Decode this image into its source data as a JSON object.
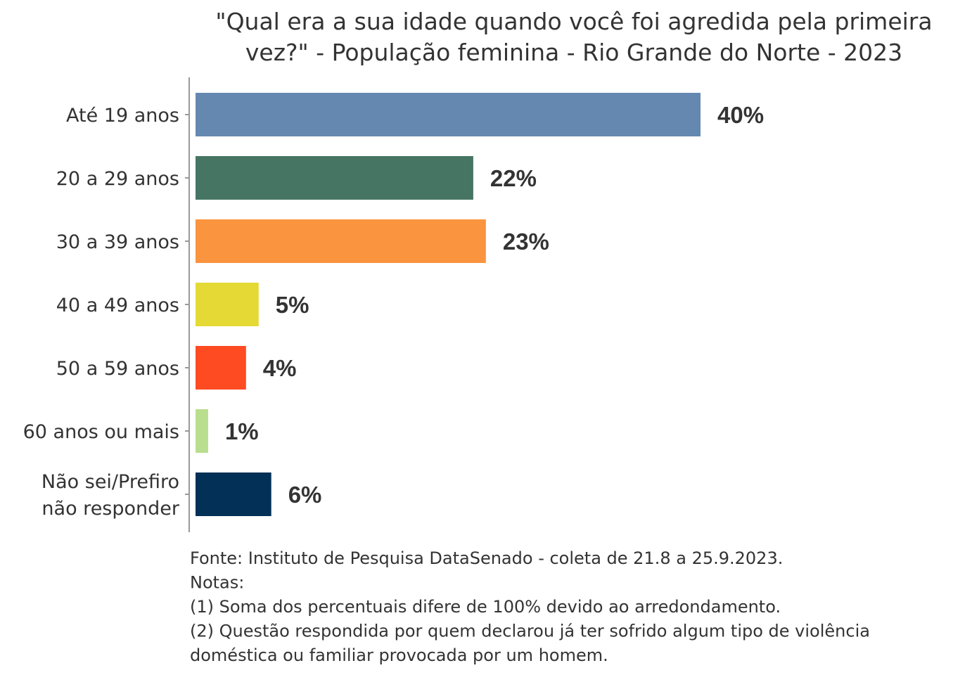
{
  "chart_data": {
    "type": "bar",
    "orientation": "horizontal",
    "title_lines": [
      "\"Qual era a sua idade quando você foi agredida pela primeira",
      "vez?\" - População feminina - Rio Grande do Norte - 2023"
    ],
    "categories": [
      [
        "Até 19 anos"
      ],
      [
        "20 a 29 anos"
      ],
      [
        "30 a 39 anos"
      ],
      [
        "40 a 49 anos"
      ],
      [
        "50 a 59 anos"
      ],
      [
        "60 anos ou mais"
      ],
      [
        "Não sei/Prefiro",
        "não responder"
      ]
    ],
    "values": [
      40,
      22,
      23,
      5,
      4,
      1,
      6
    ],
    "labels": [
      "40%",
      "22%",
      "23%",
      "5%",
      "4%",
      "1%",
      "6%"
    ],
    "colors": [
      "#6588b0",
      "#467563",
      "#fa943f",
      "#e5d936",
      "#ff4b22",
      "#b9de8e",
      "#023056"
    ],
    "xlim": [
      0,
      40
    ],
    "grid": false,
    "legend": "none",
    "notes": [
      "Fonte: Instituto de Pesquisa DataSenado - coleta de 21.8 a 25.9.2023.",
      "Notas:",
      "(1) Soma dos percentuais difere de 100% devido ao arredondamento.",
      "(2) Questão respondida por quem declarou já ter sofrido algum tipo de violência",
      "doméstica ou familiar provocada por um homem."
    ]
  }
}
